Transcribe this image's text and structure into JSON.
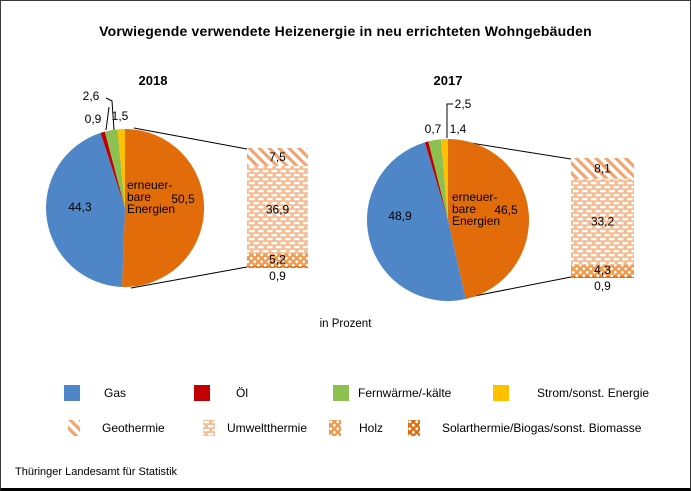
{
  "title": "Vorwiegende verwendete Heizenergie in neu errichteten Wohngebäuden",
  "unit_label": "in Prozent",
  "source": "Thüringer  Landesamt für Statistik",
  "chart_data": [
    {
      "type": "pie",
      "title": "2018",
      "unit": "Prozent",
      "center_label": [
        "erneuer-",
        "bare",
        "Energien"
      ],
      "slices": [
        {
          "key": "erneuerbare",
          "label": "erneuerbare Energien",
          "value": 50.5,
          "color": "#E36C0A"
        },
        {
          "key": "gas",
          "label": "Gas",
          "value": 44.3,
          "color": "#4E86C8"
        },
        {
          "key": "oel",
          "label": "Öl",
          "value": 0.9,
          "color": "#C00000"
        },
        {
          "key": "fernwaerme",
          "label": "Fernwärme/-kälte",
          "value": 2.6,
          "color": "#8CC152"
        },
        {
          "key": "strom",
          "label": "Strom/sonst. Energie",
          "value": 1.5,
          "color": "#FFC000"
        }
      ],
      "breakdown": {
        "type": "bar",
        "of_slice": "erneuerbare Energien",
        "segments": [
          {
            "key": "geothermie",
            "label": "Geothermie",
            "value": 7.5,
            "pattern": "geothermie"
          },
          {
            "key": "umweltthermie",
            "label": "Umweltthermie",
            "value": 36.9,
            "pattern": "umweltthermie"
          },
          {
            "key": "holz",
            "label": "Holz",
            "value": 5.2,
            "pattern": "holz"
          },
          {
            "key": "solarthermie",
            "label": "Solarthermie/Biogas/sonst. Biomasse",
            "value": 0.9,
            "pattern": "solarthermie"
          }
        ]
      }
    },
    {
      "type": "pie",
      "title": "2017",
      "unit": "Prozent",
      "center_label": [
        "erneuer-",
        "bare",
        "Energien"
      ],
      "slices": [
        {
          "key": "erneuerbare",
          "label": "erneuerbare Energien",
          "value": 46.5,
          "color": "#E36C0A"
        },
        {
          "key": "gas",
          "label": "Gas",
          "value": 48.9,
          "color": "#4E86C8"
        },
        {
          "key": "oel",
          "label": "Öl",
          "value": 0.7,
          "color": "#C00000"
        },
        {
          "key": "fernwaerme",
          "label": "Fernwärme/-kälte",
          "value": 2.5,
          "color": "#8CC152"
        },
        {
          "key": "strom",
          "label": "Strom/sonst. Energie",
          "value": 1.4,
          "color": "#FFC000"
        }
      ],
      "breakdown": {
        "type": "bar",
        "of_slice": "erneuerbare Energien",
        "segments": [
          {
            "key": "geothermie",
            "label": "Geothermie",
            "value": 8.1,
            "pattern": "geothermie"
          },
          {
            "key": "umweltthermie",
            "label": "Umweltthermie",
            "value": 33.2,
            "pattern": "umweltthermie"
          },
          {
            "key": "holz",
            "label": "Holz",
            "value": 4.3,
            "pattern": "holz"
          },
          {
            "key": "solarthermie",
            "label": "Solarthermie/Biogas/sonst. Biomasse",
            "value": 0.9,
            "pattern": "solarthermie"
          }
        ]
      }
    }
  ],
  "legend": {
    "rows": [
      [
        {
          "key": "gas",
          "label": "Gas",
          "swatch": "solid",
          "color": "#4E86C8"
        },
        {
          "key": "oel",
          "label": "Öl",
          "swatch": "solid",
          "color": "#C00000"
        },
        {
          "key": "fernwaerme",
          "label": "Fernwärme/-kälte",
          "swatch": "solid",
          "color": "#8CC152"
        },
        {
          "key": "strom",
          "label": "Strom/sonst. Energie",
          "swatch": "solid",
          "color": "#FFC000"
        }
      ],
      [
        {
          "key": "geothermie",
          "label": "Geothermie",
          "swatch": "pattern",
          "pattern": "geothermie"
        },
        {
          "key": "umweltthermie",
          "label": "Umweltthermie",
          "swatch": "pattern",
          "pattern": "umweltthermie"
        },
        {
          "key": "holz",
          "label": "Holz",
          "swatch": "pattern",
          "pattern": "holz"
        },
        {
          "key": "solarthermie",
          "label": "Solarthermie/Biogas/sonst. Biomasse",
          "swatch": "pattern",
          "pattern": "solarthermie"
        }
      ]
    ]
  },
  "pattern_colors": {
    "geothermie_stripe": "#F2A470",
    "umweltthermie_bg": "#F6BE94",
    "holz_bg": "#F09C50",
    "solarthermie_bg": "#E36C0A"
  }
}
